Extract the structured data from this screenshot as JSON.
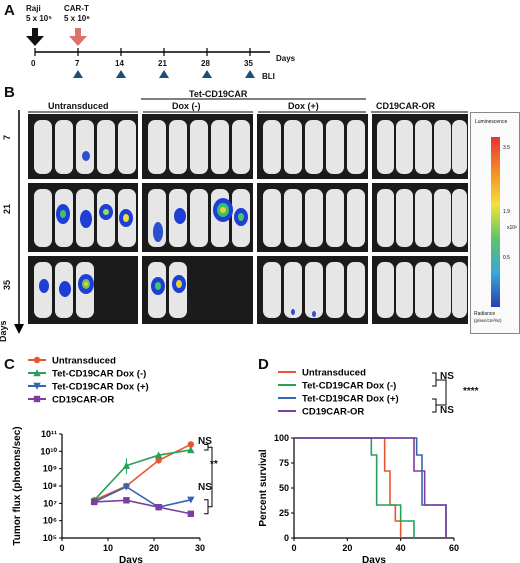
{
  "panel_a": {
    "letter": "A",
    "raji_label": "Raji",
    "raji_dose": "5 x 10⁵",
    "cart_label": "CAR-T",
    "cart_dose": "5 x 10⁶",
    "timeline_ticks": [
      "0",
      "7",
      "14",
      "21",
      "28",
      "35"
    ],
    "days_label": "Days",
    "bli_label": "BLI"
  },
  "panel_b": {
    "letter": "B",
    "group_untransduced": "Untransduced",
    "group_tet": "Tet-CD19CAR",
    "group_dox_minus": "Dox (-)",
    "group_dox_plus": "Dox (+)",
    "group_or": "CD19CAR-OR",
    "row_days": [
      "7",
      "21",
      "35"
    ],
    "days_axis_label": "Days",
    "colorbar_title": "Luminescence",
    "colorbar_ticks": [
      "3.5",
      "1.9",
      "0.5"
    ],
    "colorbar_unit": "x10⁶",
    "colorbar_footer_1": "Radiance",
    "colorbar_footer_2": "(p/sec/cm²/sr)"
  },
  "panel_c": {
    "letter": "C",
    "legend": [
      "Untransduced",
      "Tet-CD19CAR Dox (-)",
      "Tet-CD19CAR Dox (+)",
      "CD19CAR-OR"
    ],
    "annot_ns_top": "NS",
    "annot_star": "**",
    "annot_ns_bottom": "NS"
  },
  "panel_d": {
    "letter": "D",
    "legend": [
      "Untransduced",
      "Tet-CD19CAR Dox (-)",
      "Tet-CD19CAR Dox (+)",
      "CD19CAR-OR"
    ],
    "annot_ns_top": "NS",
    "annot_star": "****",
    "annot_ns_bottom": "NS"
  },
  "chart_data": [
    {
      "type": "line",
      "xlabel": "Days",
      "ylabel": "Tumor flux (photons/sec)",
      "xlim": [
        0,
        30
      ],
      "ylim_log10": [
        5,
        11
      ],
      "xticks": [
        "0",
        "10",
        "20",
        "30"
      ],
      "yticks": [
        "10⁵",
        "10⁶",
        "10⁷",
        "10⁸",
        "10⁹",
        "10¹⁰",
        "10¹¹"
      ],
      "series": [
        {
          "name": "Untransduced",
          "color": "#e8552e",
          "marker": "circle",
          "x": [
            7,
            14,
            21,
            28
          ],
          "y": [
            15000000.0,
            100000000.0,
            3000000000.0,
            25000000000.0
          ]
        },
        {
          "name": "Tet-CD19CAR Dox (-)",
          "color": "#27a05a",
          "marker": "triangle-up",
          "x": [
            7,
            14,
            21,
            28
          ],
          "y": [
            15000000.0,
            1500000000.0,
            6000000000.0,
            12000000000.0
          ]
        },
        {
          "name": "Tet-CD19CAR Dox (+)",
          "color": "#3565b0",
          "marker": "triangle-down",
          "x": [
            7,
            14,
            21,
            28
          ],
          "y": [
            12000000.0,
            90000000.0,
            6000000.0,
            16000000.0
          ]
        },
        {
          "name": "CD19CAR-OR",
          "color": "#7b3fa0",
          "marker": "square",
          "x": [
            7,
            14,
            21,
            28
          ],
          "y": [
            12000000.0,
            15000000.0,
            6000000.0,
            2500000.0
          ]
        }
      ]
    },
    {
      "type": "line",
      "xlabel": "Days",
      "ylabel": "Percent survival",
      "xlim": [
        0,
        60
      ],
      "ylim": [
        0,
        100
      ],
      "xticks": [
        "0",
        "20",
        "40",
        "60"
      ],
      "yticks": [
        "0",
        "25",
        "50",
        "75",
        "100"
      ],
      "series": [
        {
          "name": "Untransduced",
          "color": "#e8552e",
          "x": [
            0,
            34,
            34,
            36,
            36,
            38,
            38,
            40,
            40
          ],
          "y": [
            100,
            100,
            67,
            67,
            33,
            33,
            17,
            17,
            0
          ]
        },
        {
          "name": "Tet-CD19CAR Dox (-)",
          "color": "#27a05a",
          "x": [
            0,
            29,
            29,
            31,
            31,
            40,
            40,
            45,
            45
          ],
          "y": [
            100,
            100,
            83,
            83,
            33,
            33,
            17,
            17,
            0
          ]
        },
        {
          "name": "Tet-CD19CAR Dox (+)",
          "color": "#3565b0",
          "x": [
            0,
            46,
            46,
            48,
            48,
            52,
            52,
            57,
            57
          ],
          "y": [
            100,
            100,
            83,
            83,
            33,
            33,
            33,
            33,
            0
          ]
        },
        {
          "name": "CD19CAR-OR",
          "color": "#7b3fa0",
          "x": [
            0,
            45,
            45,
            49,
            49,
            57,
            57
          ],
          "y": [
            100,
            100,
            67,
            67,
            33,
            33,
            0
          ]
        }
      ]
    }
  ]
}
